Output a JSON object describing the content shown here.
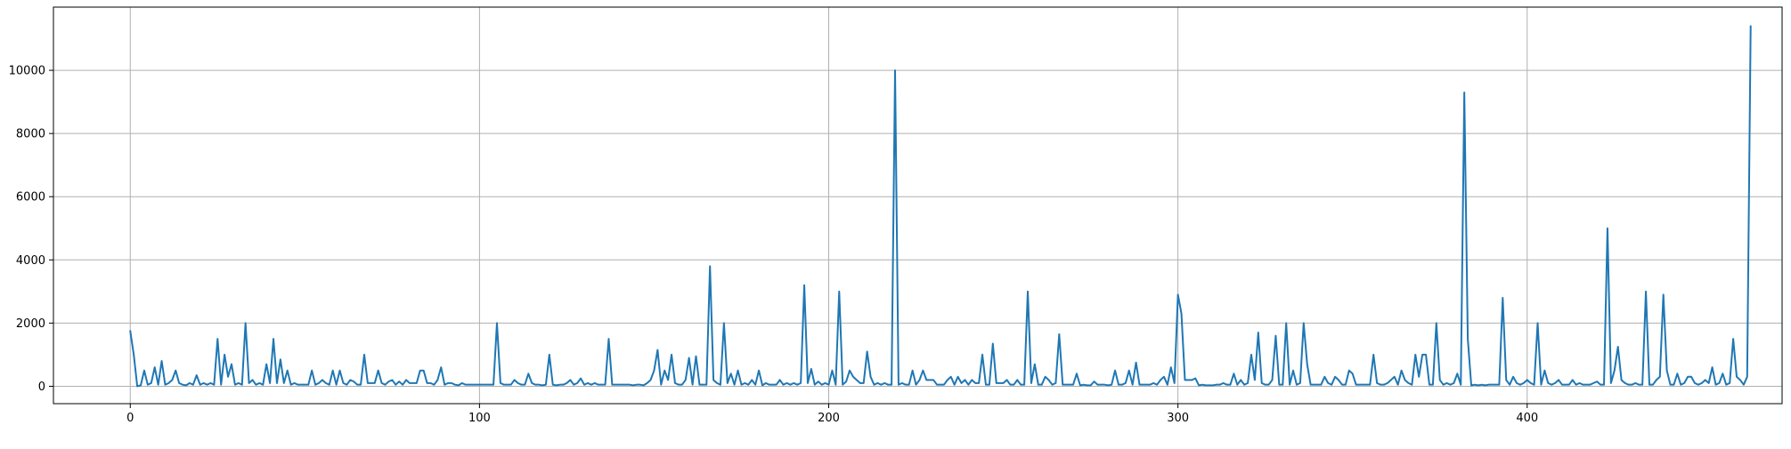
{
  "chart_data": {
    "type": "line",
    "title": "",
    "xlabel": "",
    "ylabel": "",
    "xlim": [
      -22,
      473
    ],
    "ylim": [
      -550,
      12000
    ],
    "grid": true,
    "legend": "none",
    "x_ticks": [
      0,
      100,
      200,
      300,
      400
    ],
    "x_tick_labels": [
      "0",
      "100",
      "200",
      "300",
      "400"
    ],
    "y_ticks": [
      0,
      2000,
      4000,
      6000,
      8000,
      10000
    ],
    "y_tick_labels": [
      "0",
      "2000",
      "4000",
      "6000",
      "8000",
      "10000"
    ],
    "colors": {
      "line": "#1f77b4",
      "grid": "#b0b0b0",
      "axis": "#000000"
    },
    "series": [
      {
        "x_start": 0,
        "x_step": 1,
        "values": [
          1750,
          1000,
          0,
          30,
          500,
          50,
          100,
          600,
          50,
          800,
          50,
          100,
          200,
          500,
          100,
          50,
          30,
          100,
          50,
          350,
          50,
          100,
          50,
          100,
          50,
          1500,
          50,
          1000,
          300,
          700,
          50,
          100,
          50,
          2000,
          100,
          200,
          50,
          100,
          50,
          700,
          100,
          1500,
          100,
          850,
          100,
          500,
          50,
          100,
          50,
          50,
          50,
          50,
          500,
          50,
          100,
          200,
          100,
          50,
          500,
          50,
          500,
          100,
          50,
          200,
          150,
          50,
          50,
          1000,
          100,
          100,
          100,
          500,
          100,
          50,
          150,
          200,
          50,
          150,
          50,
          200,
          100,
          100,
          100,
          500,
          500,
          100,
          100,
          50,
          200,
          600,
          50,
          100,
          100,
          50,
          30,
          100,
          50,
          50,
          50,
          50,
          50,
          50,
          50,
          50,
          50,
          2000,
          100,
          50,
          50,
          50,
          200,
          100,
          50,
          50,
          400,
          100,
          50,
          50,
          30,
          50,
          1000,
          50,
          30,
          50,
          50,
          100,
          200,
          50,
          100,
          250,
          50,
          100,
          50,
          100,
          50,
          50,
          50,
          1500,
          50,
          50,
          50,
          50,
          50,
          50,
          30,
          50,
          50,
          30,
          100,
          200,
          500,
          1150,
          50,
          500,
          200,
          1000,
          100,
          50,
          50,
          200,
          900,
          50,
          950,
          50,
          50,
          50,
          3800,
          200,
          100,
          50,
          2000,
          100,
          400,
          50,
          500,
          50,
          100,
          50,
          200,
          50,
          500,
          30,
          100,
          50,
          50,
          50,
          200,
          50,
          100,
          50,
          100,
          50,
          100,
          3200,
          100,
          550,
          50,
          150,
          50,
          100,
          50,
          500,
          50,
          3000,
          50,
          150,
          500,
          300,
          200,
          100,
          100,
          1100,
          300,
          50,
          100,
          50,
          100,
          50,
          50,
          10000,
          50,
          100,
          50,
          50,
          500,
          50,
          200,
          500,
          200,
          200,
          200,
          50,
          50,
          50,
          200,
          300,
          50,
          300,
          100,
          200,
          50,
          200,
          100,
          100,
          1000,
          50,
          50,
          1350,
          100,
          100,
          100,
          200,
          50,
          50,
          200,
          50,
          50,
          3000,
          100,
          700,
          50,
          50,
          300,
          200,
          50,
          100,
          1650,
          50,
          50,
          50,
          50,
          400,
          30,
          50,
          30,
          30,
          150,
          50,
          50,
          50,
          30,
          50,
          500,
          50,
          50,
          100,
          500,
          50,
          750,
          50,
          50,
          50,
          50,
          100,
          50,
          200,
          300,
          50,
          600,
          100,
          2900,
          2300,
          200,
          200,
          200,
          250,
          30,
          50,
          30,
          30,
          30,
          50,
          50,
          100,
          50,
          50,
          400,
          50,
          200,
          50,
          100,
          1000,
          200,
          1700,
          100,
          50,
          50,
          200,
          1600,
          50,
          50,
          2000,
          50,
          500,
          50,
          100,
          2000,
          700,
          50,
          50,
          50,
          50,
          300,
          100,
          50,
          300,
          200,
          50,
          50,
          500,
          400,
          50,
          50,
          50,
          50,
          50,
          1000,
          100,
          50,
          50,
          100,
          200,
          300,
          50,
          500,
          200,
          100,
          50,
          1000,
          300,
          1000,
          1000,
          50,
          50,
          2000,
          200,
          50,
          100,
          50,
          100,
          400,
          50,
          9300,
          1500,
          30,
          50,
          30,
          50,
          30,
          50,
          50,
          50,
          50,
          2800,
          200,
          50,
          300,
          100,
          50,
          100,
          200,
          100,
          50,
          2000,
          50,
          500,
          100,
          50,
          100,
          200,
          50,
          50,
          50,
          200,
          50,
          100,
          50,
          50,
          50,
          100,
          150,
          50,
          50,
          5000,
          100,
          500,
          1250,
          200,
          100,
          50,
          50,
          100,
          50,
          50,
          3000,
          50,
          50,
          200,
          300,
          2900,
          500,
          50,
          50,
          400,
          50,
          100,
          300,
          300,
          100,
          50,
          100,
          200,
          100,
          600,
          50,
          100,
          400,
          50,
          100,
          1500,
          300,
          200,
          50,
          300,
          11400
        ]
      }
    ]
  }
}
